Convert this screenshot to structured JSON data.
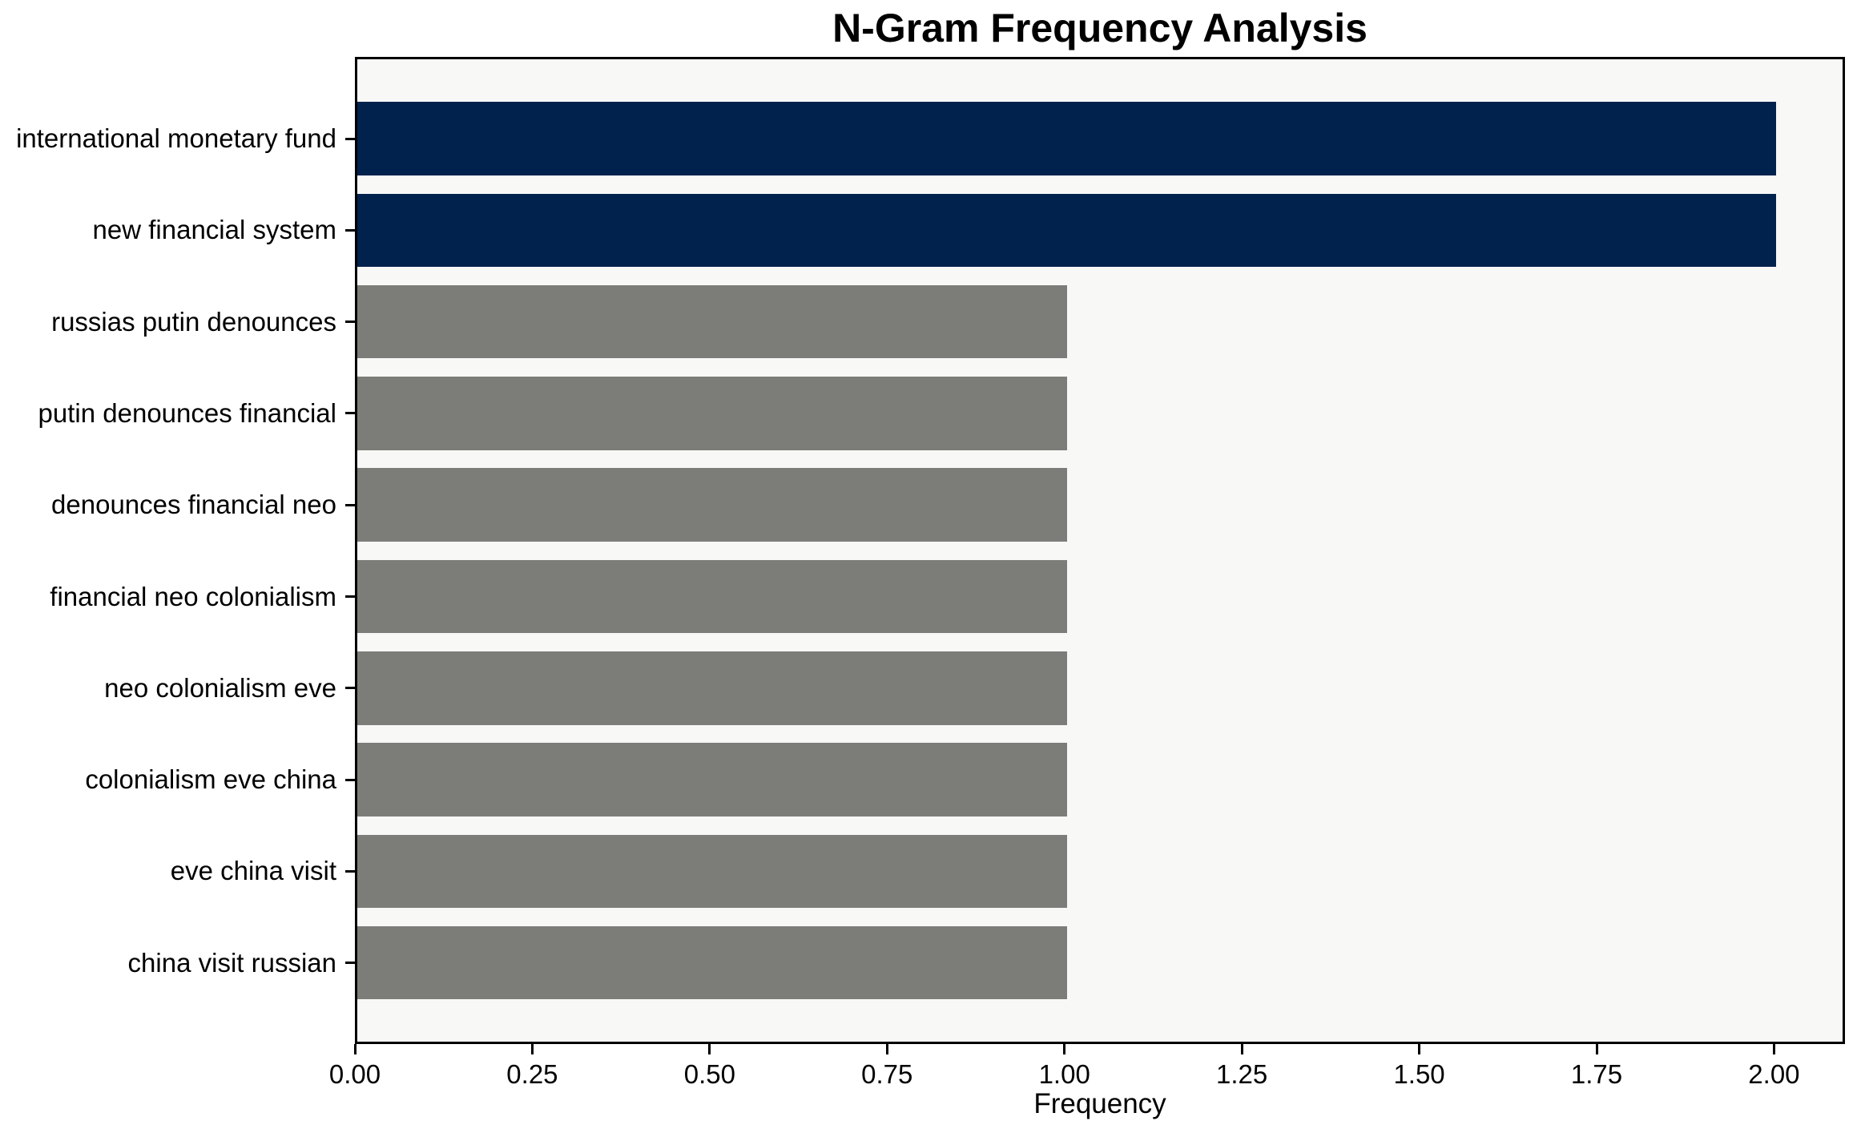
{
  "title": "N-Gram Frequency Analysis",
  "chart_data": {
    "type": "bar",
    "orientation": "horizontal",
    "title": "N-Gram Frequency Analysis",
    "xlabel": "Frequency",
    "ylabel": "",
    "categories": [
      "international monetary fund",
      "new financial system",
      "russias putin denounces",
      "putin denounces financial",
      "denounces financial neo",
      "financial neo colonialism",
      "neo colonialism eve",
      "colonialism eve china",
      "eve china visit",
      "china visit russian"
    ],
    "values": [
      2,
      2,
      1,
      1,
      1,
      1,
      1,
      1,
      1,
      1
    ],
    "bar_colors": [
      "#02224e",
      "#02224e",
      "#7c7c79",
      "#7c7c79",
      "#7c7c79",
      "#7c7c79",
      "#7c7c79",
      "#7c7c79",
      "#7c7c79",
      "#7c7c79"
    ],
    "xlim": [
      0,
      2.1
    ],
    "xticks": [
      {
        "value": 0.0,
        "label": "0.00"
      },
      {
        "value": 0.25,
        "label": "0.25"
      },
      {
        "value": 0.5,
        "label": "0.50"
      },
      {
        "value": 0.75,
        "label": "0.75"
      },
      {
        "value": 1.0,
        "label": "1.00"
      },
      {
        "value": 1.25,
        "label": "1.25"
      },
      {
        "value": 1.5,
        "label": "1.50"
      },
      {
        "value": 1.75,
        "label": "1.75"
      },
      {
        "value": 2.0,
        "label": "2.00"
      }
    ],
    "grid": false,
    "legend": null,
    "colors": {
      "bar_highlight": "#02224e",
      "bar_default": "#7c7c79",
      "plot_background": "#f8f8f7",
      "axis": "#000000",
      "text": "#000000"
    }
  }
}
